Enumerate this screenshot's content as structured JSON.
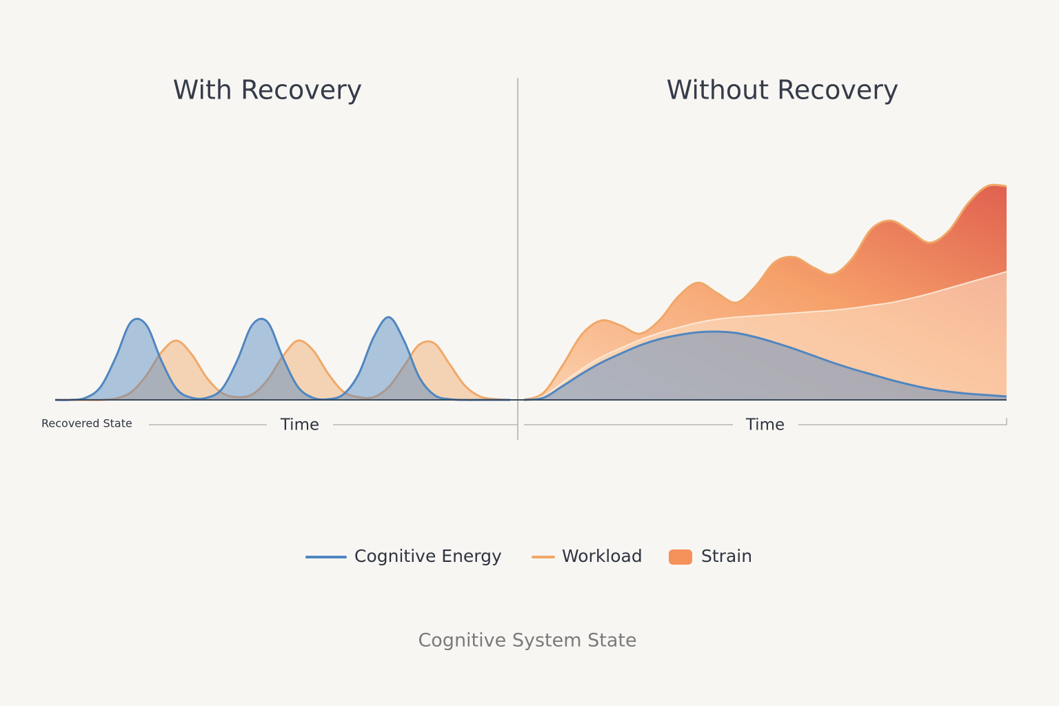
{
  "chart_data": [
    {
      "type": "area",
      "title": "With Recovery",
      "x_label": "Time",
      "annotation": "Recovered State",
      "series": [
        {
          "color": "#f0a868",
          "values": [
            0,
            0,
            0,
            0,
            2,
            11,
            35,
            69,
            86,
            66,
            32,
            10,
            4,
            8,
            29,
            63,
            86,
            72,
            38,
            12,
            4,
            4,
            19,
            49,
            80,
            82,
            52,
            21,
            5,
            1,
            0
          ]
        },
        {
          "color": "#4f86c0",
          "values": [
            0,
            0,
            3,
            19,
            62,
            113,
            109,
            57,
            16,
            3,
            3,
            16,
            57,
            109,
            113,
            62,
            19,
            3,
            1,
            8,
            37,
            91,
            120,
            86,
            33,
            7,
            1,
            0,
            0,
            0,
            0
          ]
        }
      ]
    },
    {
      "type": "area",
      "title": "Without Recovery",
      "x_label": "Time",
      "series": [
        {
          "name": "Workload",
          "color": "#f0a868",
          "values": [
            0,
            10,
            50,
            95,
            115,
            108,
            96,
            115,
            150,
            170,
            155,
            141,
            165,
            200,
            207,
            192,
            182,
            205,
            248,
            260,
            245,
            228,
            245,
            285,
            310,
            310
          ]
        },
        {
          "name": "Strain",
          "color": "#f4905a",
          "values": [
            0,
            5,
            25,
            45,
            62,
            75,
            87,
            97,
            105,
            112,
            117,
            120,
            122,
            124,
            126,
            128,
            130,
            133,
            137,
            141,
            147,
            154,
            162,
            170,
            178,
            186
          ]
        },
        {
          "name": "Cognitive Energy",
          "color": "#4f86c0",
          "values": [
            0,
            3,
            20,
            38,
            54,
            67,
            79,
            88,
            94,
            98,
            99,
            97,
            91,
            83,
            74,
            64,
            54,
            45,
            37,
            29,
            22,
            16,
            12,
            9,
            7,
            5
          ]
        }
      ]
    }
  ],
  "caption": "Cognitive System State"
}
